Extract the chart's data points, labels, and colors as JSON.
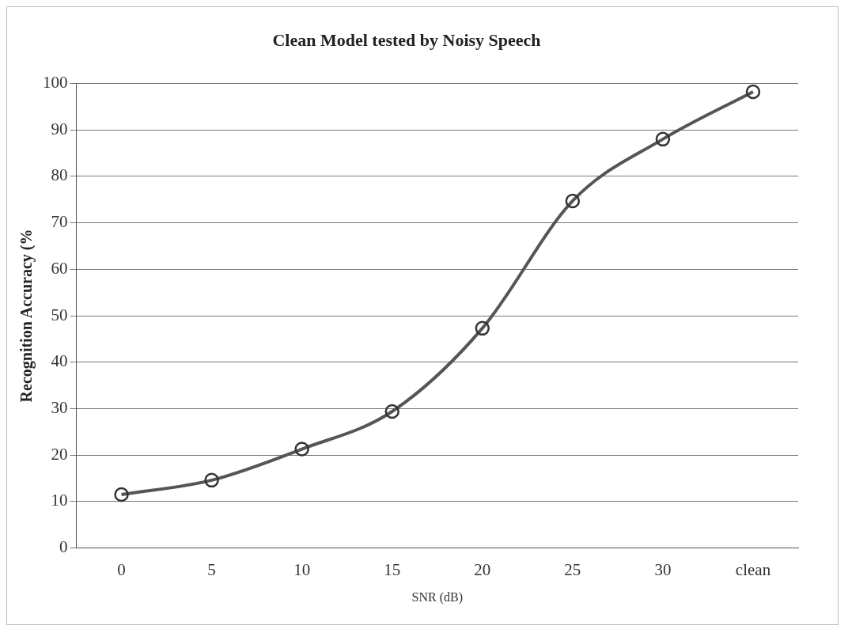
{
  "chart_data": {
    "type": "line",
    "title": "Clean Model tested by Noisy Speech",
    "xlabel": "SNR (dB)",
    "ylabel": "Recognition Accuracy (%",
    "categories": [
      "0",
      "5",
      "10",
      "15",
      "20",
      "25",
      "30",
      "clean"
    ],
    "series": [
      {
        "color": "#555555",
        "values": [
          11.5,
          14.6,
          21.3,
          29.4,
          47.3,
          74.7,
          88,
          98.2
        ]
      }
    ],
    "ylim": [
      0,
      100
    ],
    "yticks": [
      0,
      10,
      20,
      30,
      40,
      50,
      60,
      70,
      80,
      90,
      100
    ],
    "grid": "y",
    "legend": false,
    "marker": "circle",
    "line_style": "solid"
  }
}
